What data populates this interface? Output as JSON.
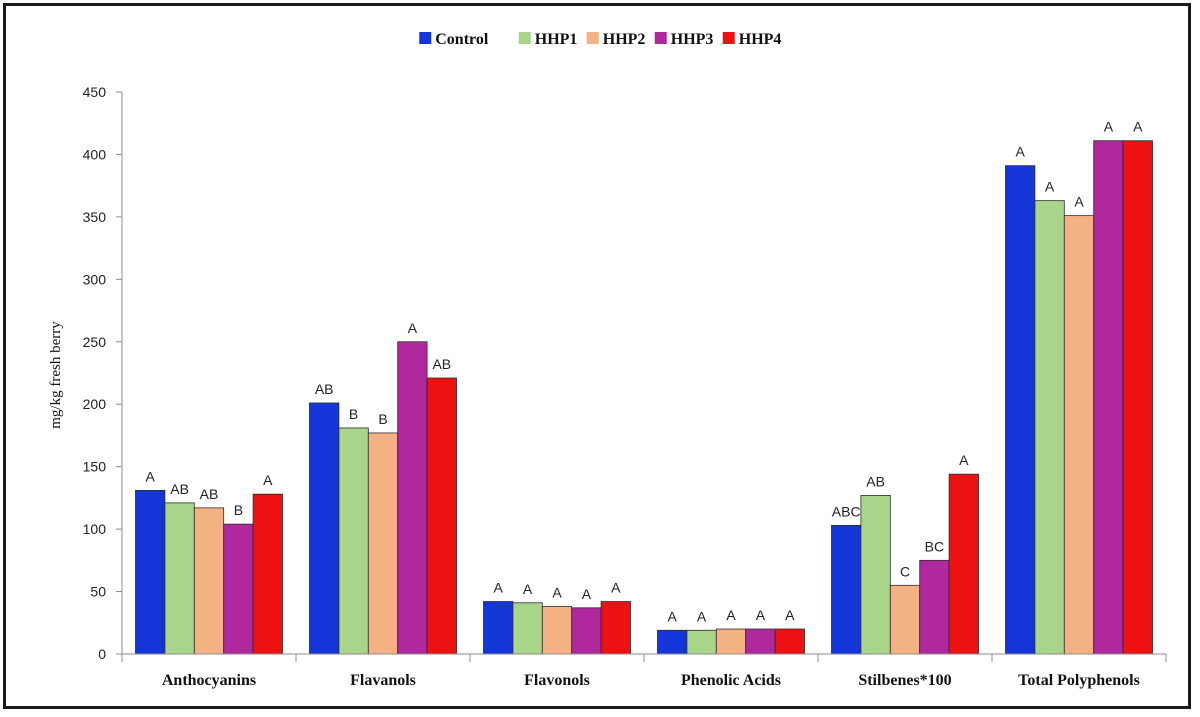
{
  "chart_data": {
    "type": "bar",
    "title": "",
    "xlabel": "",
    "ylabel": "mg/kg fresh berry",
    "ylim": [
      0,
      450
    ],
    "yticks": [
      0,
      50,
      100,
      150,
      200,
      250,
      300,
      350,
      400,
      450
    ],
    "grid": false,
    "legend_position": "top-center",
    "categories": [
      "Anthocyanins",
      "Flavanols",
      "Flavonols",
      "Phenolic Acids",
      "Stilbenes*100",
      "Total Polyphenols"
    ],
    "series": [
      {
        "name": "Control",
        "color": "#1436d8",
        "values": [
          131,
          201,
          42,
          19,
          103,
          391
        ],
        "labels": [
          "A",
          "AB",
          "A",
          "A",
          "ABC",
          "A"
        ]
      },
      {
        "name": "HHP1",
        "color": "#a8d58a",
        "values": [
          121,
          181,
          41,
          19,
          127,
          363
        ],
        "labels": [
          "AB",
          "B",
          "A",
          "A",
          "AB",
          "A"
        ]
      },
      {
        "name": "HHP2",
        "color": "#f4b183",
        "values": [
          117,
          177,
          38,
          20,
          55,
          351
        ],
        "labels": [
          "AB",
          "B",
          "A",
          "A",
          "C",
          "A"
        ]
      },
      {
        "name": "HHP3",
        "color": "#b0289d",
        "values": [
          104,
          250,
          37,
          20,
          75,
          411
        ],
        "labels": [
          "B",
          "A",
          "A",
          "A",
          "BC",
          "A"
        ]
      },
      {
        "name": "HHP4",
        "color": "#ee1111",
        "values": [
          128,
          221,
          42,
          20,
          144,
          411
        ],
        "labels": [
          "A",
          "AB",
          "A",
          "A",
          "A",
          "A"
        ]
      }
    ]
  }
}
